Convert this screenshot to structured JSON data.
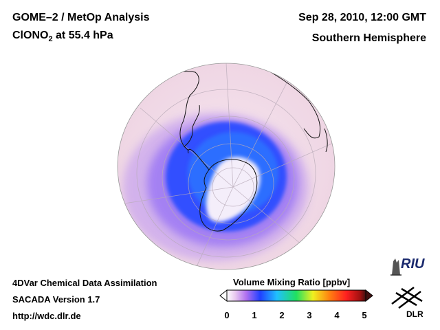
{
  "header": {
    "title_line1": "GOME–2 / MetOp Analysis",
    "species_main": "ClONO",
    "species_sub": "2",
    "species_level": " at 55.4 hPa",
    "datetime": "Sep 28, 2010, 12:00 GMT",
    "hemisphere": "Southern Hemisphere"
  },
  "footer": {
    "line1": "4DVar Chemical Data Assimilation",
    "line2": "SACADA Version 1.7",
    "line3": "http://wdc.dlr.de"
  },
  "colorbar": {
    "title": "Volume Mixing Ratio [ppbv]",
    "ticks": [
      "0",
      "1",
      "2",
      "3",
      "4",
      "5"
    ],
    "colors": [
      "#ffffff",
      "#e8c8f0",
      "#b070f0",
      "#2040ff",
      "#20c0ff",
      "#20e060",
      "#f0f020",
      "#ff8010",
      "#ff2020",
      "#a01010",
      "#401010"
    ]
  },
  "logos": {
    "riu": "RIU",
    "dlr": "DLR"
  },
  "map": {
    "projection": "orthographic",
    "hemisphere": "south",
    "feature": "polar vortex ClONO2 collar"
  }
}
